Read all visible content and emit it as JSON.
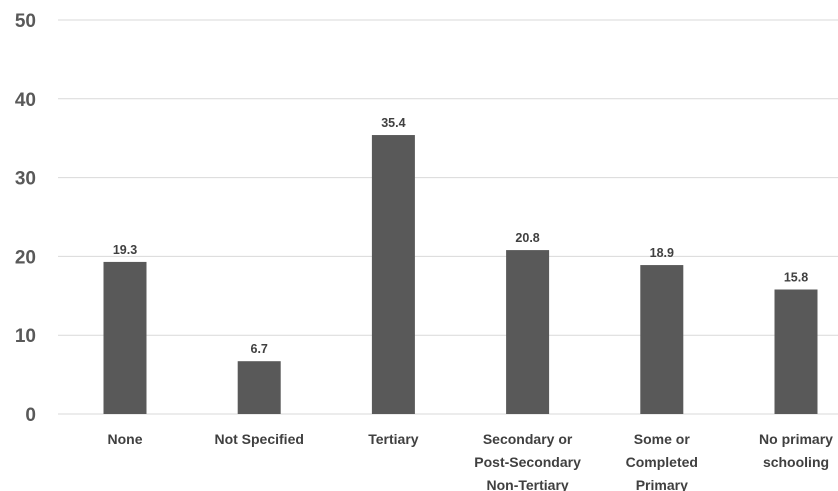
{
  "chart_data": {
    "type": "bar",
    "categories": [
      [
        "None"
      ],
      [
        "Not Specified"
      ],
      [
        "Tertiary"
      ],
      [
        "Secondary or",
        "Post-Secondary",
        "Non-Tertiary"
      ],
      [
        "Some or",
        "Completed",
        "Primary"
      ],
      [
        "No primary",
        "schooling"
      ]
    ],
    "values": [
      19.3,
      6.7,
      35.4,
      20.8,
      18.9,
      15.8
    ],
    "data_labels": [
      "19.3",
      "6.7",
      "35.4",
      "20.8",
      "18.9",
      "15.8"
    ],
    "yticks": [
      0,
      10,
      20,
      30,
      40,
      50
    ],
    "ylim": [
      0,
      50
    ],
    "grid": true,
    "bar_color": "#595959",
    "title": "",
    "xlabel": "",
    "ylabel": ""
  }
}
